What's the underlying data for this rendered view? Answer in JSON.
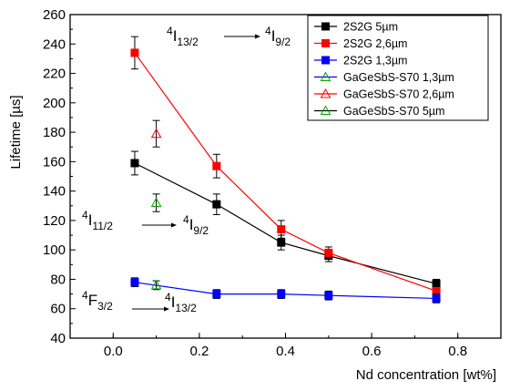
{
  "chart_data": {
    "type": "scatter",
    "xlabel": "Nd concentration [wt%]",
    "ylabel": "Lifetime [µs]",
    "xlim": [
      -0.1,
      0.9
    ],
    "ylim": [
      40,
      260
    ],
    "xticks": [
      0.0,
      0.2,
      0.4,
      0.6,
      0.8
    ],
    "xtick_labels": [
      "0.0",
      "0.2",
      "0.4",
      "0.6",
      "0.8"
    ],
    "yticks": [
      40,
      60,
      80,
      100,
      120,
      140,
      160,
      180,
      200,
      220,
      240,
      260
    ],
    "ytick_labels": [
      "40",
      "60",
      "80",
      "100",
      "120",
      "140",
      "160",
      "180",
      "200",
      "220",
      "240",
      "260"
    ],
    "legend_position": "top-right",
    "series": [
      {
        "name": "2S2G 5µm",
        "color": "#000000",
        "marker": "square",
        "filled": true,
        "line": true,
        "x": [
          0.05,
          0.24,
          0.39,
          0.5,
          0.75
        ],
        "y": [
          159,
          131,
          105,
          96,
          77
        ],
        "err": [
          8,
          7,
          5,
          4,
          3
        ]
      },
      {
        "name": "2S2G 2,6µm",
        "color": "#ff0000",
        "marker": "square",
        "filled": true,
        "line": true,
        "x": [
          0.05,
          0.24,
          0.39,
          0.5,
          0.75
        ],
        "y": [
          234,
          157,
          114,
          98,
          72
        ],
        "err": [
          11,
          8,
          6,
          4,
          3
        ]
      },
      {
        "name": "2S2G 1,3µm",
        "color": "#0000ff",
        "marker": "square",
        "filled": true,
        "line": true,
        "x": [
          0.05,
          0.24,
          0.39,
          0.5,
          0.75
        ],
        "y": [
          78,
          70,
          70,
          69,
          67
        ],
        "err": [
          3,
          3,
          3,
          3,
          3
        ]
      },
      {
        "name": "GaGeSbS-S70 1,3µm",
        "color": "#00aa00",
        "legend_color": "#0000ff",
        "marker": "triangle",
        "filled": false,
        "line": false,
        "x": [
          0.1
        ],
        "y": [
          76
        ],
        "err": [
          3
        ]
      },
      {
        "name": "GaGeSbS-S70 2,6µm",
        "color": "#ff0000",
        "marker": "triangle",
        "filled": false,
        "line": false,
        "x": [
          0.1
        ],
        "y": [
          179
        ],
        "err": [
          9
        ]
      },
      {
        "name": "GaGeSbS-S70 5µm",
        "color": "#00aa00",
        "legend_color": "#000000",
        "marker": "triangle",
        "filled": false,
        "line": false,
        "x": [
          0.1
        ],
        "y": [
          132
        ],
        "err": [
          6
        ]
      }
    ],
    "annotations": [
      {
        "from": {
          "main": "4",
          "label": "I",
          "sub": "13/2"
        },
        "to": {
          "main": "4",
          "label": "I",
          "sub": "9/2"
        }
      },
      {
        "from": {
          "main": "4",
          "label": "I",
          "sub": "11/2"
        },
        "to": {
          "main": "4",
          "label": "I",
          "sub": "9/2"
        }
      },
      {
        "from": {
          "main": "4",
          "label": "F",
          "sub": "3/2"
        },
        "to": {
          "main": "4",
          "label": "I",
          "sub": "13/2"
        }
      }
    ]
  }
}
